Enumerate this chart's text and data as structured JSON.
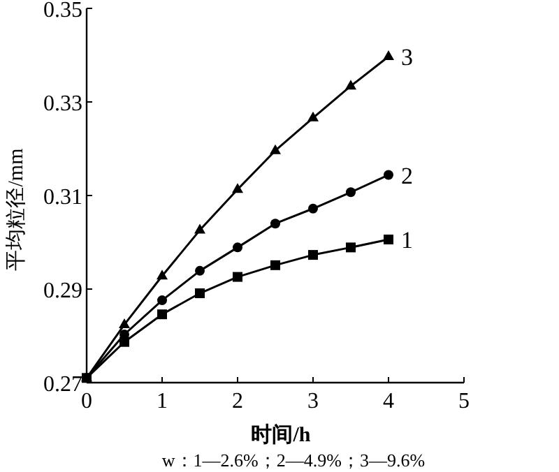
{
  "chart_data": {
    "type": "line",
    "xlabel": "时间/h",
    "ylabel": "平均粒径/mm",
    "annotations": [
      "w：1—2.6%；2—4.9%；3—9.6%"
    ],
    "x": [
      0,
      0.5,
      1,
      1.5,
      2,
      2.5,
      3,
      3.5,
      4
    ],
    "series": [
      {
        "name": "1",
        "color": "#000000",
        "marker": "square",
        "values": [
          0.271,
          0.2787,
          0.2846,
          0.2891,
          0.2926,
          0.2951,
          0.2973,
          0.2989,
          0.3006
        ]
      },
      {
        "name": "2",
        "color": "#000000",
        "marker": "circle",
        "values": [
          0.271,
          0.2803,
          0.2876,
          0.2939,
          0.2989,
          0.304,
          0.3072,
          0.3107,
          0.3144
        ]
      },
      {
        "name": "3",
        "color": "#000000",
        "marker": "triangle",
        "values": [
          0.271,
          0.2824,
          0.2928,
          0.3026,
          0.3113,
          0.3196,
          0.3266,
          0.3334,
          0.3397
        ]
      }
    ],
    "xlim": [
      0,
      5
    ],
    "xticks": [
      0,
      1,
      2,
      3,
      4,
      5
    ],
    "ylim": [
      0.27,
      0.35
    ],
    "yticks": [
      0.27,
      0.29,
      0.31,
      0.33,
      0.35
    ],
    "grid": false,
    "line_style": "solid"
  }
}
